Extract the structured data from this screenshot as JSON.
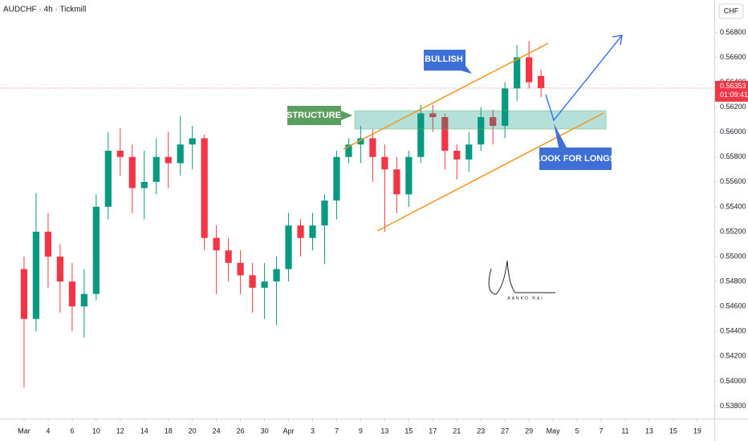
{
  "chart_data": {
    "type": "candlestick",
    "title": "AUDCHF · 4h · Tickmill",
    "currency": "CHF",
    "x": [
      0,
      1,
      2,
      3,
      4,
      5,
      6,
      7,
      8,
      9,
      10,
      11,
      12,
      13,
      14,
      15,
      16,
      17,
      18,
      19,
      20,
      21,
      22,
      23,
      24,
      25,
      26,
      27,
      28,
      29,
      30,
      31,
      32,
      33,
      34,
      35,
      36,
      37,
      38,
      39,
      40,
      41,
      42,
      43
    ],
    "open": [
      0.549,
      0.545,
      0.552,
      0.55,
      0.548,
      0.546,
      0.547,
      0.554,
      0.5585,
      0.558,
      0.5555,
      0.556,
      0.558,
      0.5575,
      0.559,
      0.5595,
      0.5515,
      0.5505,
      0.5495,
      0.5485,
      0.5475,
      0.548,
      0.549,
      0.5525,
      0.5515,
      0.5525,
      0.5545,
      0.558,
      0.559,
      0.5595,
      0.558,
      0.557,
      0.555,
      0.558,
      0.5615,
      0.5612,
      0.5585,
      0.5578,
      0.559,
      0.5612,
      0.5605,
      0.5635,
      0.566,
      0.5645
    ],
    "high": [
      0.55,
      0.5551,
      0.5535,
      0.551,
      0.5495,
      0.549,
      0.555,
      0.56,
      0.5603,
      0.559,
      0.5585,
      0.5595,
      0.56,
      0.5613,
      0.5605,
      0.5598,
      0.5525,
      0.5515,
      0.5505,
      0.5495,
      0.5495,
      0.55,
      0.5535,
      0.553,
      0.5535,
      0.555,
      0.5585,
      0.5595,
      0.5605,
      0.5602,
      0.559,
      0.558,
      0.5585,
      0.5622,
      0.5622,
      0.5615,
      0.559,
      0.56,
      0.562,
      0.5618,
      0.564,
      0.567,
      0.5673,
      0.565
    ],
    "low": [
      0.5395,
      0.544,
      0.5475,
      0.5455,
      0.544,
      0.5435,
      0.5465,
      0.553,
      0.5565,
      0.5535,
      0.553,
      0.555,
      0.5555,
      0.5565,
      0.557,
      0.5505,
      0.547,
      0.548,
      0.547,
      0.5455,
      0.545,
      0.5445,
      0.548,
      0.55,
      0.5505,
      0.5494,
      0.553,
      0.5575,
      0.5575,
      0.556,
      0.552,
      0.5535,
      0.554,
      0.5575,
      0.56,
      0.557,
      0.5562,
      0.5568,
      0.5585,
      0.559,
      0.5595,
      0.5625,
      0.5635,
      0.5628
    ],
    "close": [
      0.545,
      0.552,
      0.55,
      0.548,
      0.546,
      0.547,
      0.554,
      0.5585,
      0.558,
      0.5555,
      0.556,
      0.558,
      0.5575,
      0.559,
      0.5595,
      0.5515,
      0.5505,
      0.5495,
      0.5485,
      0.5475,
      0.548,
      0.549,
      0.5525,
      0.5515,
      0.5525,
      0.5545,
      0.558,
      0.559,
      0.5595,
      0.558,
      0.557,
      0.555,
      0.558,
      0.5615,
      0.5612,
      0.5585,
      0.5578,
      0.559,
      0.5612,
      0.5605,
      0.5635,
      0.566,
      0.564,
      0.56353
    ],
    "up_color": "#089981",
    "down_color": "#f23645",
    "last_price": 0.56353,
    "countdown": "01:09:41",
    "xlim": [
      -2,
      57.41
    ],
    "xticks": [
      {
        "value": 0,
        "label": "Mar"
      },
      {
        "value": 2,
        "label": "4"
      },
      {
        "value": 4,
        "label": "6"
      },
      {
        "value": 6,
        "label": "10"
      },
      {
        "value": 8,
        "label": "12"
      },
      {
        "value": 10,
        "label": "14"
      },
      {
        "value": 12,
        "label": "18"
      },
      {
        "value": 14,
        "label": "20"
      },
      {
        "value": 16,
        "label": "24"
      },
      {
        "value": 18,
        "label": "26"
      },
      {
        "value": 20,
        "label": "30"
      },
      {
        "value": 22,
        "label": "Apr"
      },
      {
        "value": 24,
        "label": "3"
      },
      {
        "value": 26,
        "label": "7"
      },
      {
        "value": 28,
        "label": "9"
      },
      {
        "value": 30,
        "label": "13"
      },
      {
        "value": 32,
        "label": "15"
      },
      {
        "value": 34,
        "label": "17"
      },
      {
        "value": 36,
        "label": "21"
      },
      {
        "value": 38,
        "label": "23"
      },
      {
        "value": 40,
        "label": "27"
      },
      {
        "value": 42,
        "label": "29"
      },
      {
        "value": 44,
        "label": "May"
      },
      {
        "value": 46,
        "label": "5"
      },
      {
        "value": 48,
        "label": "7"
      },
      {
        "value": 50,
        "label": "11"
      },
      {
        "value": 52,
        "label": "13"
      },
      {
        "value": 54,
        "label": "15"
      },
      {
        "value": 56,
        "label": "19"
      }
    ],
    "ylim": [
      0.537,
      0.5706
    ],
    "yticks": [
      {
        "value": 0.538,
        "label": "0.53800"
      },
      {
        "value": 0.54,
        "label": "0.54000"
      },
      {
        "value": 0.542,
        "label": "0.54200"
      },
      {
        "value": 0.544,
        "label": "0.54400"
      },
      {
        "value": 0.546,
        "label": "0.54600"
      },
      {
        "value": 0.548,
        "label": "0.54800"
      },
      {
        "value": 0.55,
        "label": "0.55000"
      },
      {
        "value": 0.552,
        "label": "0.55200"
      },
      {
        "value": 0.554,
        "label": "0.55400"
      },
      {
        "value": 0.556,
        "label": "0.55600"
      },
      {
        "value": 0.558,
        "label": "0.55800"
      },
      {
        "value": 0.56,
        "label": "0.56000"
      },
      {
        "value": 0.562,
        "label": "0.56200"
      },
      {
        "value": 0.564,
        "label": "0.56400"
      },
      {
        "value": 0.566,
        "label": "0.56600"
      },
      {
        "value": 0.568,
        "label": "0.56800"
      }
    ],
    "grid": false,
    "annotations": [
      "STRUCTURE",
      "BULLISH",
      "LOOK FOR LONGS"
    ],
    "signature": "AANKO RAI"
  }
}
